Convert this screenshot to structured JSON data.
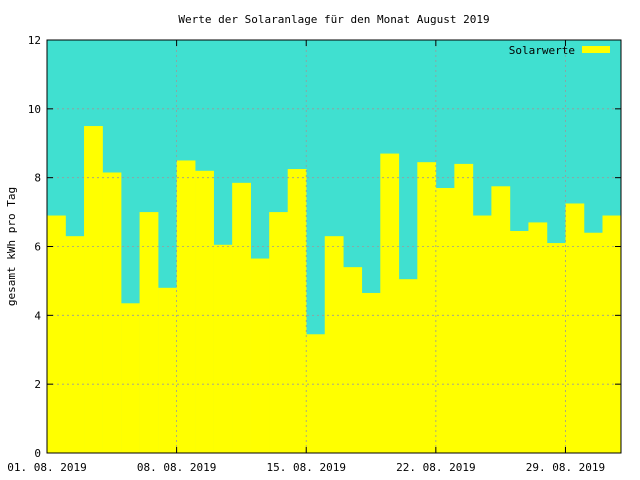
{
  "colors": {
    "plot_background": "#40e0d0",
    "bar_fill": "#ffff00",
    "grid": "#9a9a9a",
    "axis": "#000000"
  },
  "chart_data": {
    "type": "bar",
    "title": "Werte der Solaranlage für den Monat August 2019",
    "xlabel": "",
    "ylabel": "gesamt kWh pro Tag",
    "ylim": [
      0,
      12
    ],
    "yticks": [
      0,
      2,
      4,
      6,
      8,
      10,
      12
    ],
    "xticks": [
      {
        "day": 1,
        "label": "01. 08. 2019"
      },
      {
        "day": 8,
        "label": "08. 08. 2019"
      },
      {
        "day": 15,
        "label": "15. 08. 2019"
      },
      {
        "day": 22,
        "label": "22. 08. 2019"
      },
      {
        "day": 29,
        "label": "29. 08. 2019"
      }
    ],
    "grid": true,
    "legend": {
      "position": "top-right"
    },
    "series": [
      {
        "name": "Solarwerte",
        "color": "#ffff00",
        "days": [
          1,
          2,
          3,
          4,
          5,
          6,
          7,
          8,
          9,
          10,
          11,
          12,
          13,
          14,
          15,
          16,
          17,
          18,
          19,
          20,
          21,
          22,
          23,
          24,
          25,
          26,
          27,
          28,
          29,
          30,
          31
        ],
        "values": [
          6.9,
          6.3,
          9.5,
          8.15,
          4.35,
          7.0,
          4.8,
          8.5,
          8.2,
          6.05,
          7.85,
          5.65,
          7.0,
          8.25,
          3.45,
          6.3,
          5.4,
          4.65,
          8.7,
          5.05,
          8.45,
          7.7,
          8.4,
          6.9,
          7.75,
          6.45,
          6.7,
          6.1,
          7.25,
          6.4,
          6.9
        ]
      }
    ]
  }
}
